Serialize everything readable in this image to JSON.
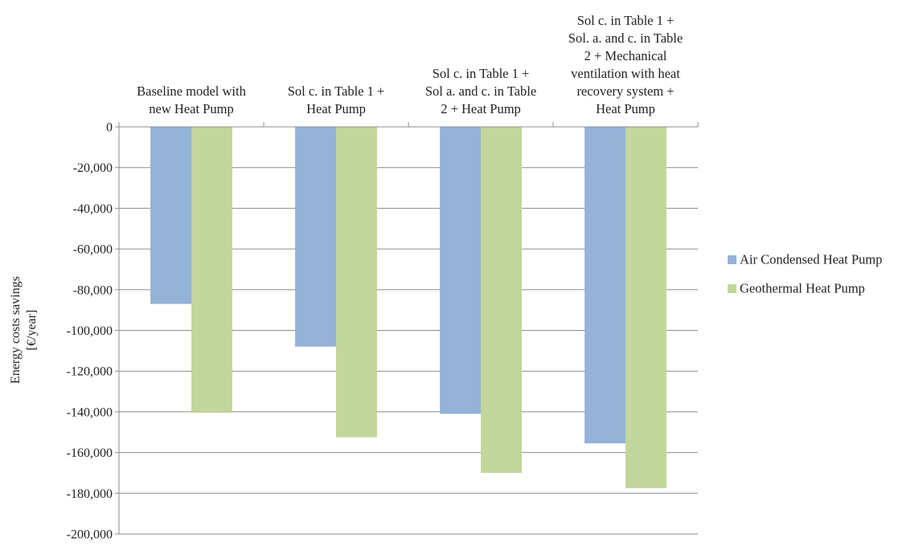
{
  "chart_data": {
    "type": "bar",
    "orientation": "vertical",
    "categories": [
      "Baseline model with new Heat Pump",
      "Sol c. in Table 1 + Heat Pump",
      "Sol c. in Table 1 + Sol a. and c. in Table 2 + Heat Pump",
      "Sol c. in Table 1 + Sol. a. and c. in Table 2 + Mechanical ventilation with heat recovery system + Heat Pump"
    ],
    "category_label_lines": [
      [
        "Baseline model with",
        "new Heat Pump"
      ],
      [
        "Sol c. in Table 1 +",
        "Heat Pump"
      ],
      [
        "Sol c. in Table 1 +",
        "Sol a. and c. in Table",
        "2 + Heat Pump"
      ],
      [
        "Sol c. in Table 1 +",
        "Sol. a. and c. in Table",
        "2 + Mechanical",
        "ventilation with heat",
        "recovery system +",
        "Heat Pump"
      ]
    ],
    "series": [
      {
        "name": "Air Condensed Heat Pump",
        "color": "#95B3D7",
        "values": [
          -87000,
          -108000,
          -141000,
          -155500
        ]
      },
      {
        "name": "Geothermal Heat Pump",
        "color": "#C3D69B",
        "values": [
          -140500,
          -152500,
          -170000,
          -177500
        ]
      }
    ],
    "ylabel_lines": [
      "Energy costs savings",
      "[€/year]"
    ],
    "ylim": [
      -200000,
      0
    ],
    "yticks": [
      0,
      -20000,
      -40000,
      -60000,
      -80000,
      -100000,
      -120000,
      -140000,
      -160000,
      -180000,
      -200000
    ],
    "ytick_labels": [
      "0",
      "-20,000",
      "-40,000",
      "-60,000",
      "-80,000",
      "-100,000",
      "-120,000",
      "-140,000",
      "-160,000",
      "-180,000",
      "-200,000"
    ],
    "grid": true,
    "legend_position": "right",
    "category_labels_position": "top"
  }
}
